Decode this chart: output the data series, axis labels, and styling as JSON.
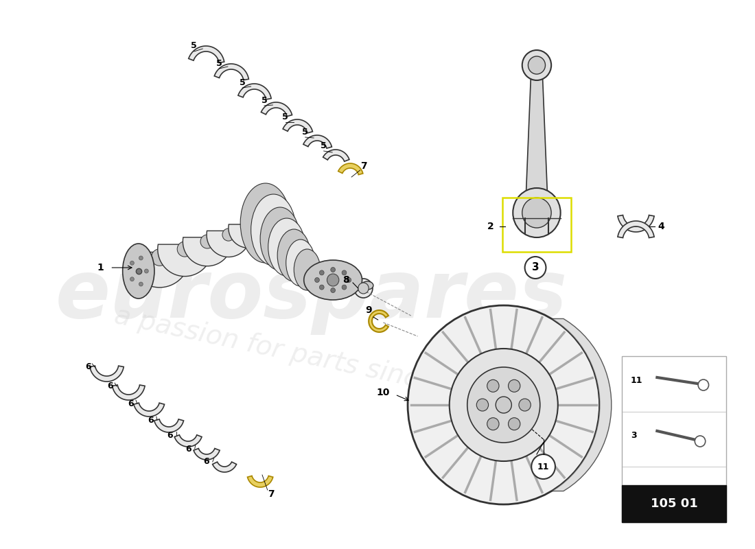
{
  "background_color": "#ffffff",
  "part_number": "105 01",
  "watermark_color": "#cccccc",
  "line_color": "#333333",
  "crank_light": "#e8e8e8",
  "crank_mid": "#c8c8c8",
  "crank_dark": "#a0a0a0",
  "bearing_color": "#d0d0d0",
  "bearing_edge": "#444444",
  "flywheel_color": "#e0e0e0",
  "thrust_color": "#e8d060",
  "thrust_edge": "#aa8800"
}
